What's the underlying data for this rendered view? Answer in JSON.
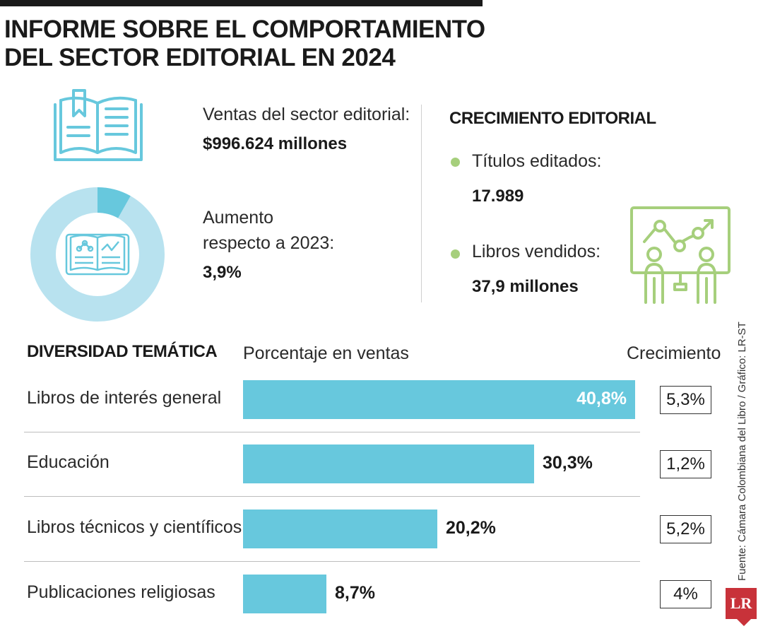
{
  "title": {
    "line1": "INFORME SOBRE EL COMPORTAMIENTO",
    "line2": "DEL SECTOR EDITORIAL EN 2024"
  },
  "sales": {
    "label": "Ventas del sector editorial:",
    "value": "$996.624 millones"
  },
  "growth_2023": {
    "label_line1": "Aumento",
    "label_line2": "respecto a 2023:",
    "value": "3,9%",
    "fraction": 0.039
  },
  "editorial_growth": {
    "heading": "CRECIMIENTO EDITORIAL",
    "titles_label": "Títulos editados:",
    "titles_value": "17.989",
    "books_label": "Libros vendidos:",
    "books_value": "37,9 millones"
  },
  "icons": {
    "book": "open-book-icon",
    "book_small": "book-data-icon",
    "presentation": "presentation-board-icon"
  },
  "colors": {
    "bar": "#67c8dd",
    "ring": "#b8e2ef",
    "ring_accent": "#67c8dd",
    "icon_green": "#a6cf7c",
    "logo": "#c8323a"
  },
  "chart_data": {
    "type": "bar",
    "title": "DIVERSIDAD TEMÁTICA",
    "xlabel": "Porcentaje en ventas",
    "growth_header": "Crecimiento",
    "categories": [
      "Libros de interés general",
      "Educación",
      "Libros técnicos y científicos",
      "Publicaciones religiosas"
    ],
    "values": [
      40.8,
      30.3,
      20.2,
      8.7
    ],
    "value_labels": [
      "40,8%",
      "30,3%",
      "20,2%",
      "8,7%"
    ],
    "growth": [
      "5,3%",
      "1,2%",
      "5,2%",
      "4%"
    ],
    "xlim": [
      0,
      40.8
    ]
  },
  "source": "Fuente: Cámara Colombiana del Libro / Gráfico: LR-ST",
  "logo": "LR"
}
